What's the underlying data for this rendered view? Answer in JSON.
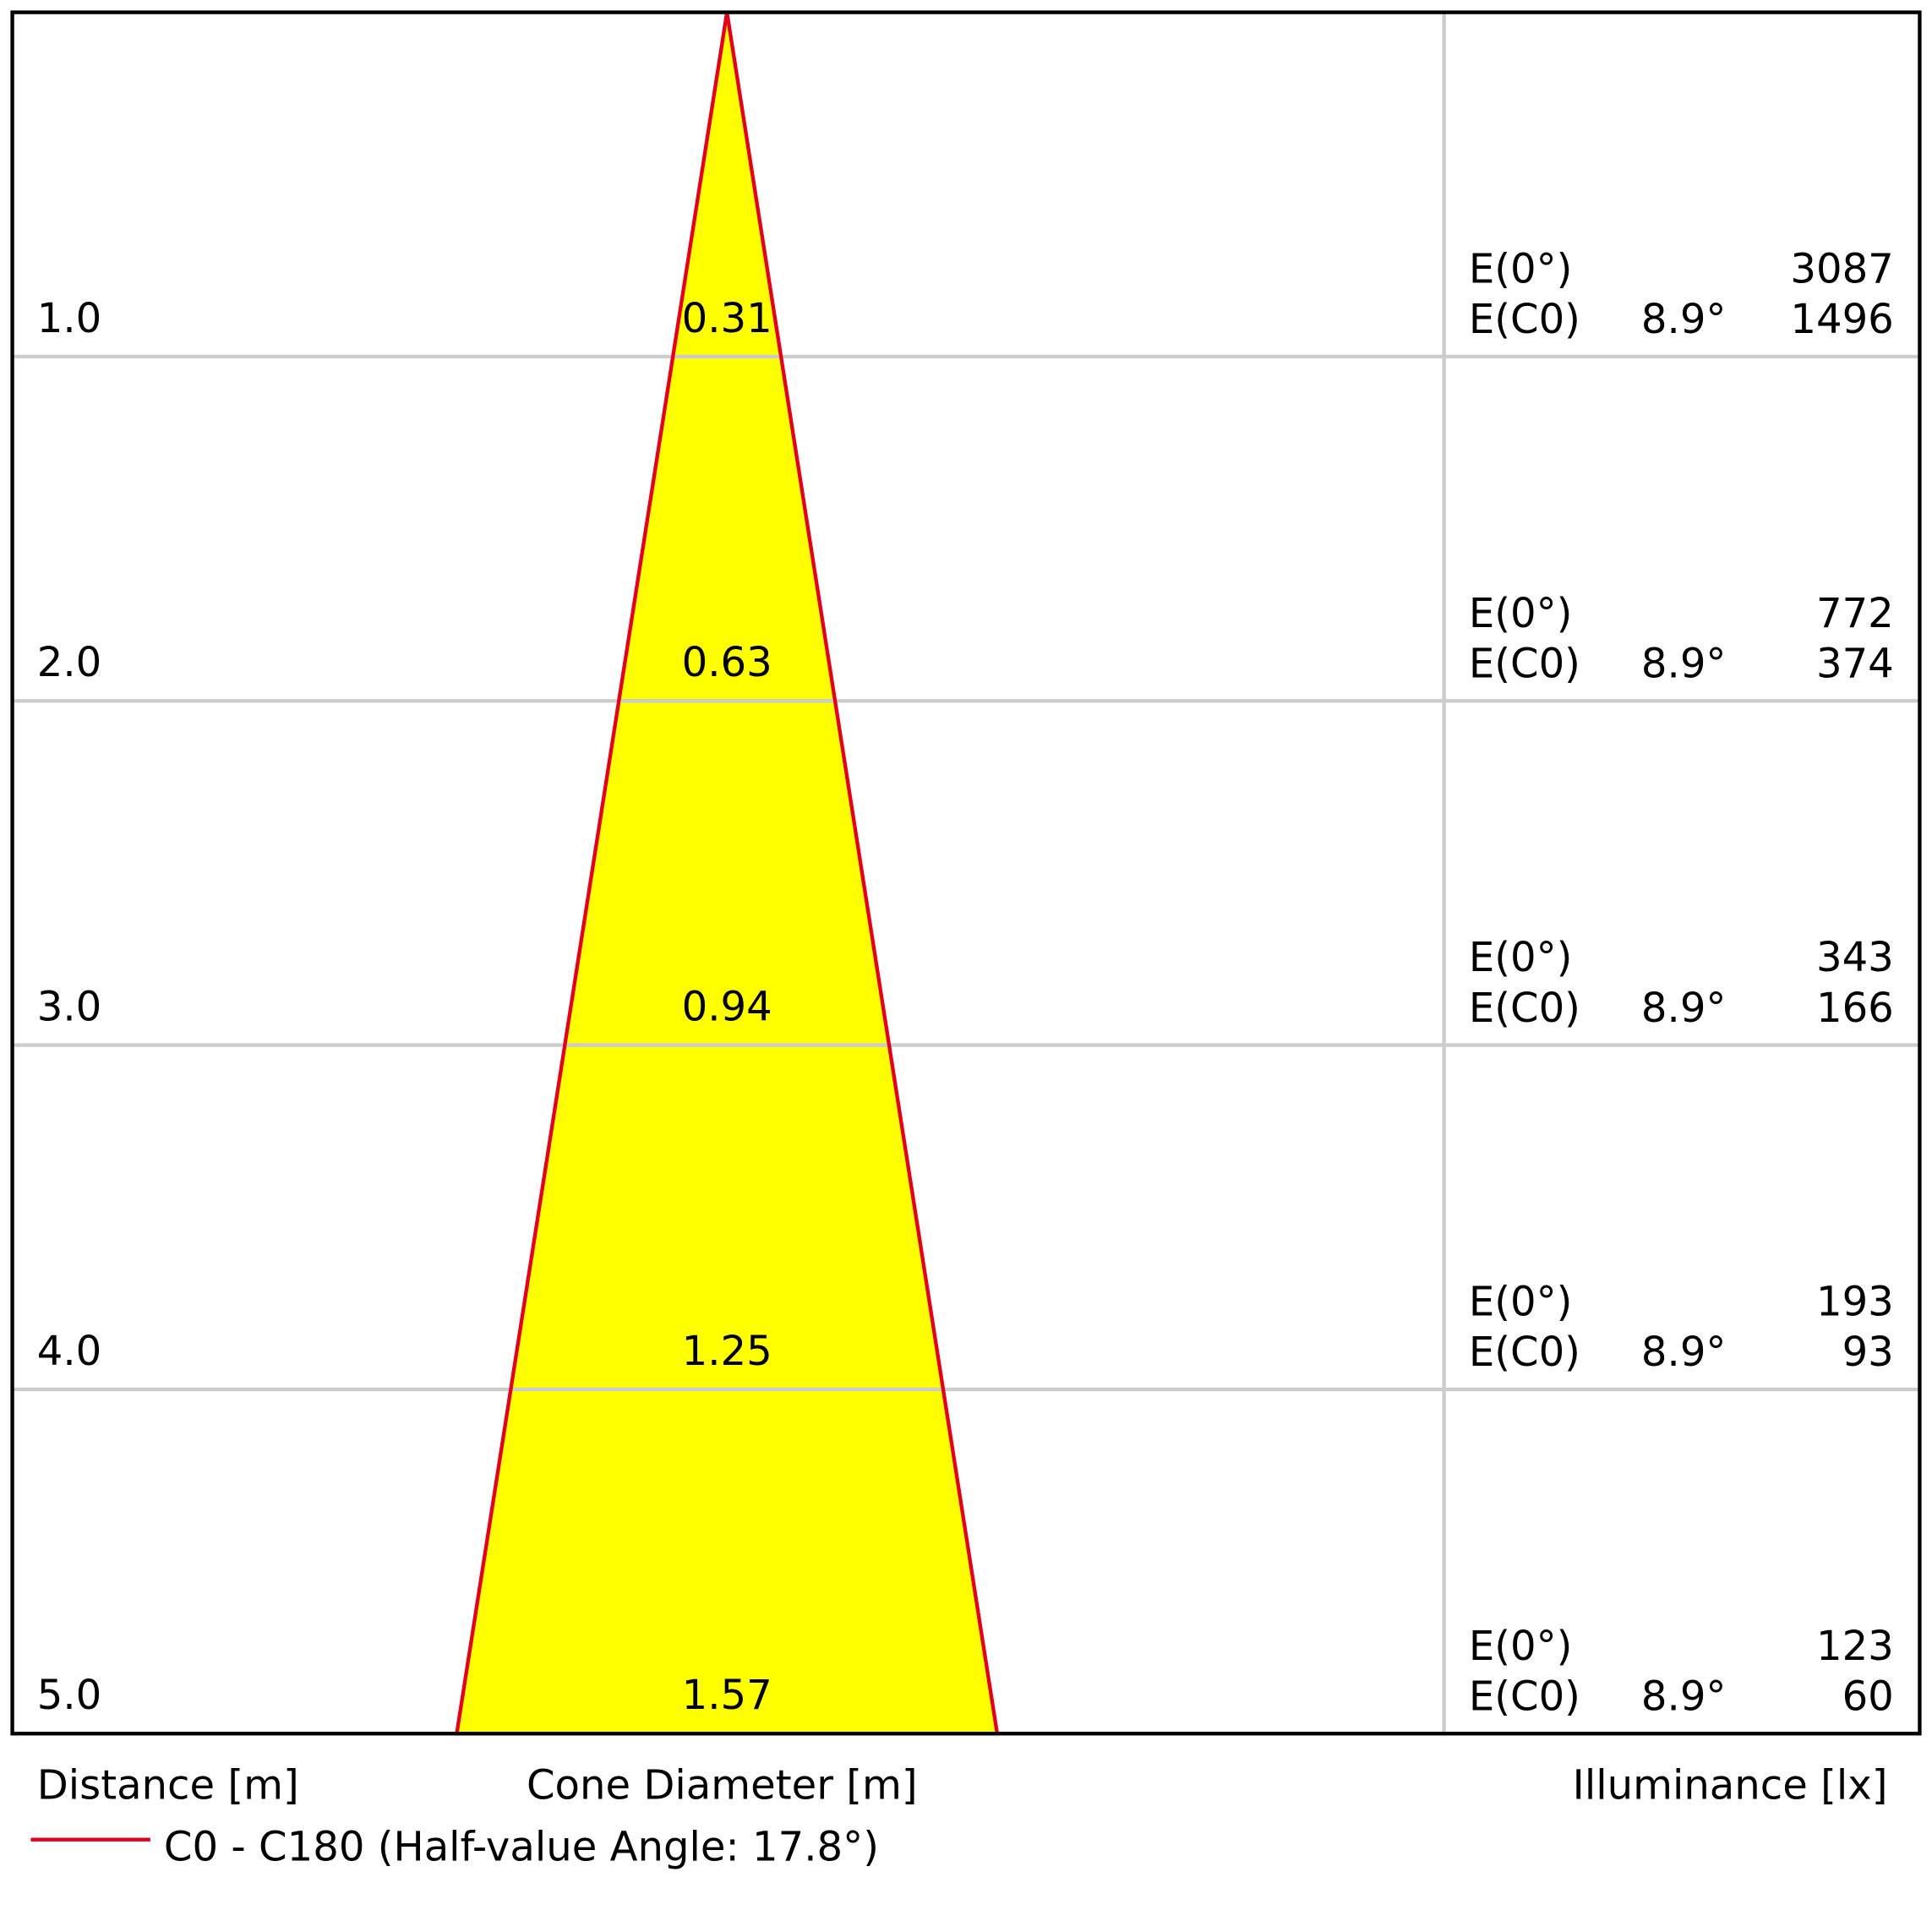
{
  "chart_data": {
    "type": "cone",
    "distance_label": "Distance [m]",
    "diameter_label": "Cone Diameter [m]",
    "illuminance_label": "Illuminance [lx]",
    "distances": [
      {
        "value": 1,
        "label": "1.0"
      },
      {
        "value": 2,
        "label": "2.0"
      },
      {
        "value": 3,
        "label": "3.0"
      },
      {
        "value": 4,
        "label": "4.0"
      },
      {
        "value": 5,
        "label": "5.0"
      }
    ],
    "diameters": [
      0.31,
      0.63,
      0.94,
      1.25,
      1.57
    ],
    "e0_label": "E(0°)",
    "ec0_label": "E(C0)",
    "ec0_angle": {
      "value": 8.9,
      "label": "8.9°"
    },
    "e0": [
      3087,
      772,
      343,
      193,
      123
    ],
    "ec0": [
      1496,
      374,
      166,
      93,
      60
    ],
    "series": {
      "name": "C0 - C180 (Half-value Angle: 17.8°)",
      "color": "#e3001b",
      "fill": "#ffff00"
    }
  }
}
